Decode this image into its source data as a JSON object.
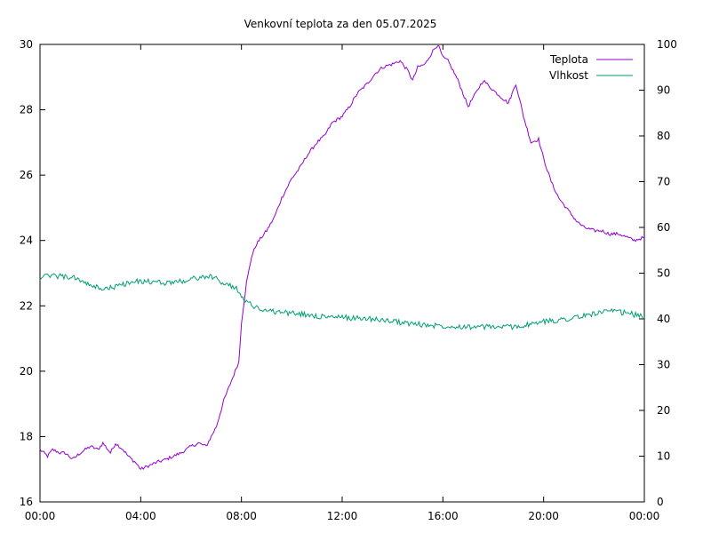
{
  "chart_data": {
    "type": "line",
    "title": "Venkovní teplota za den 05.07.2025",
    "xlabel": "",
    "ylabel": "",
    "y2label": "",
    "x_ticks": [
      "00:00",
      "04:00",
      "08:00",
      "12:00",
      "16:00",
      "20:00",
      "00:00"
    ],
    "xlim_hours": [
      0,
      24
    ],
    "ylim": [
      16,
      30
    ],
    "y_ticks": [
      16,
      18,
      20,
      22,
      24,
      26,
      28,
      30
    ],
    "y2lim": [
      0,
      100
    ],
    "y2_ticks": [
      0,
      10,
      20,
      30,
      40,
      50,
      60,
      70,
      80,
      90,
      100
    ],
    "grid": false,
    "legend_position": "top-right",
    "series": [
      {
        "name": "Teplota",
        "axis": "left",
        "color": "#9400d3",
        "x": [
          0.0,
          0.3,
          0.5,
          0.8,
          1.0,
          1.3,
          1.6,
          1.8,
          2.0,
          2.3,
          2.5,
          2.8,
          3.0,
          3.3,
          3.5,
          3.8,
          4.0,
          4.3,
          4.6,
          5.0,
          5.3,
          5.6,
          6.0,
          6.3,
          6.6,
          7.0,
          7.3,
          7.6,
          7.9,
          8.0,
          8.2,
          8.4,
          8.6,
          9.0,
          9.3,
          9.6,
          10.0,
          10.3,
          10.6,
          11.0,
          11.3,
          11.6,
          12.0,
          12.3,
          12.6,
          13.0,
          13.3,
          13.6,
          14.0,
          14.3,
          14.6,
          14.8,
          15.0,
          15.3,
          15.6,
          15.8,
          16.0,
          16.2,
          16.6,
          17.0,
          17.3,
          17.6,
          18.0,
          18.3,
          18.6,
          18.9,
          19.2,
          19.5,
          19.8,
          20.0,
          20.3,
          20.6,
          21.0,
          21.3,
          21.6,
          22.0,
          22.3,
          22.6,
          23.0,
          23.3,
          23.6,
          24.0
        ],
        "values": [
          17.6,
          17.4,
          17.6,
          17.5,
          17.5,
          17.3,
          17.5,
          17.6,
          17.7,
          17.6,
          17.8,
          17.5,
          17.8,
          17.6,
          17.4,
          17.2,
          17.0,
          17.1,
          17.2,
          17.3,
          17.4,
          17.5,
          17.7,
          17.8,
          17.7,
          18.3,
          19.1,
          19.7,
          20.3,
          21.5,
          22.7,
          23.5,
          23.9,
          24.3,
          24.7,
          25.3,
          25.9,
          26.2,
          26.6,
          27.0,
          27.2,
          27.6,
          27.8,
          28.1,
          28.5,
          28.8,
          29.1,
          29.3,
          29.4,
          29.5,
          29.2,
          28.9,
          29.3,
          29.4,
          29.8,
          30.0,
          29.6,
          29.5,
          28.9,
          28.1,
          28.5,
          28.9,
          28.6,
          28.4,
          28.2,
          28.8,
          27.8,
          27.0,
          27.1,
          26.5,
          25.8,
          25.3,
          24.9,
          24.6,
          24.4,
          24.3,
          24.3,
          24.2,
          24.2,
          24.1,
          24.0,
          24.1
        ]
      },
      {
        "name": "Vlhkost",
        "axis": "right",
        "color": "#009e73",
        "x": [
          0.0,
          0.5,
          1.0,
          1.5,
          2.0,
          2.3,
          2.6,
          3.0,
          3.3,
          3.6,
          4.0,
          4.5,
          5.0,
          5.5,
          6.0,
          6.3,
          6.6,
          7.0,
          7.3,
          7.6,
          7.9,
          8.1,
          8.4,
          8.7,
          9.0,
          9.5,
          10.0,
          10.5,
          11.0,
          11.5,
          12.0,
          12.5,
          13.0,
          13.5,
          14.0,
          14.5,
          15.0,
          15.5,
          16.0,
          16.5,
          17.0,
          17.5,
          18.0,
          18.5,
          19.0,
          19.5,
          20.0,
          20.5,
          21.0,
          21.5,
          22.0,
          22.5,
          23.0,
          23.5,
          24.0
        ],
        "values": [
          49,
          49.5,
          49.2,
          48.8,
          47.2,
          46.8,
          46.6,
          47,
          47.6,
          47.9,
          48.3,
          48.0,
          47.9,
          48.2,
          48.6,
          49.1,
          49.3,
          48.8,
          47.8,
          47.2,
          46.2,
          44.3,
          43.0,
          42.3,
          41.8,
          41.5,
          41.2,
          41.0,
          40.6,
          40.4,
          40.3,
          40.2,
          40.1,
          39.8,
          39.5,
          39.1,
          38.8,
          38.6,
          38.5,
          38.4,
          38.3,
          38.2,
          38.3,
          38.2,
          38.4,
          38.8,
          39.4,
          39.7,
          40.1,
          40.5,
          41.2,
          41.6,
          41.5,
          41.1,
          40.3
        ]
      }
    ]
  }
}
